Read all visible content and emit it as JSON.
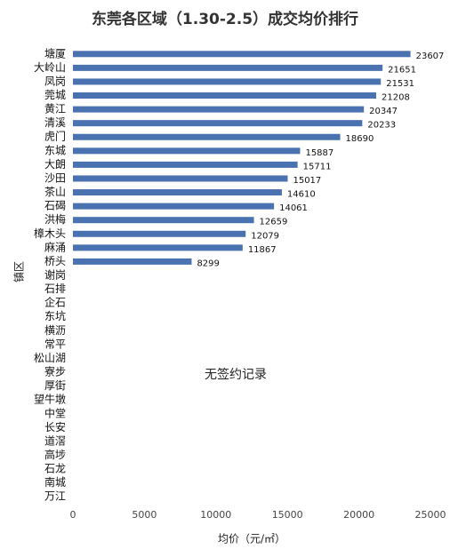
{
  "chart_data": {
    "type": "bar",
    "orientation": "horizontal",
    "title": "东莞各区域（1.30-2.5）成交均价排行",
    "x_label": "均价（元/㎡）",
    "y_label": "镇区",
    "annotation": "无签约记录",
    "categories": [
      "塘厦",
      "大岭山",
      "凤岗",
      "莞城",
      "黄江",
      "清溪",
      "虎门",
      "东城",
      "大朗",
      "沙田",
      "茶山",
      "石碣",
      "洪梅",
      "樟木头",
      "麻涌",
      "桥头",
      "谢岗",
      "石排",
      "企石",
      "东坑",
      "横沥",
      "常平",
      "松山湖",
      "寮步",
      "厚街",
      "望牛墩",
      "中堂",
      "长安",
      "道滘",
      "高埗",
      "石龙",
      "南城",
      "万江"
    ],
    "values": [
      23607,
      21651,
      21531,
      21208,
      20347,
      20233,
      18690,
      15887,
      15711,
      15017,
      14610,
      14061,
      12659,
      12079,
      11867,
      8299,
      null,
      null,
      null,
      null,
      null,
      null,
      null,
      null,
      null,
      null,
      null,
      null,
      null,
      null,
      null,
      null,
      null
    ],
    "color": "#4a72b0",
    "xlim": [
      0,
      25000
    ],
    "xticks": [
      0,
      5000,
      10000,
      15000,
      20000,
      25000
    ],
    "grid": false
  }
}
